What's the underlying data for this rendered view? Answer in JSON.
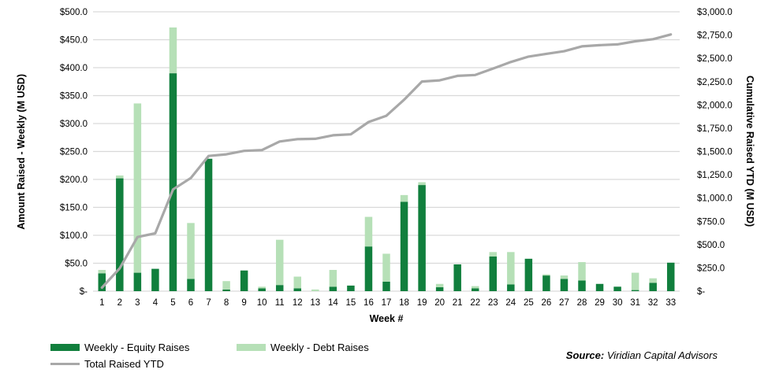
{
  "chart_data": {
    "type": "combo",
    "xlabel": "Week #",
    "categories": [
      "1",
      "2",
      "3",
      "4",
      "5",
      "6",
      "7",
      "8",
      "9",
      "10",
      "11",
      "12",
      "13",
      "14",
      "15",
      "16",
      "17",
      "18",
      "19",
      "20",
      "21",
      "22",
      "23",
      "24",
      "25",
      "26",
      "27",
      "28",
      "29",
      "30",
      "31",
      "32",
      "33"
    ],
    "series": [
      {
        "name": "Weekly - Equity Raises",
        "type": "bar",
        "stack": "weekly",
        "axis": "left",
        "color": "#117f3d",
        "values": [
          32,
          202,
          33,
          40,
          390,
          22,
          237,
          3,
          37,
          5,
          11,
          5,
          0,
          8,
          10,
          80,
          17,
          160,
          190,
          7,
          48,
          5,
          62,
          12,
          58,
          28,
          22,
          19,
          13,
          8,
          2,
          15,
          51
        ]
      },
      {
        "name": "Weekly - Debt Raises",
        "type": "bar",
        "stack": "weekly",
        "axis": "left",
        "color": "#b6e0b7",
        "values": [
          6,
          5,
          303,
          0,
          82,
          100,
          0,
          15,
          0,
          3,
          81,
          21,
          3,
          30,
          0,
          53,
          50,
          12,
          5,
          6,
          0,
          4,
          8,
          58,
          0,
          2,
          6,
          33,
          0,
          0,
          31,
          8,
          0
        ]
      },
      {
        "name": "Total Raised YTD",
        "type": "line",
        "axis": "right",
        "color": "#a8a8a8",
        "values": [
          38,
          245,
          581,
          621,
          1093,
          1215,
          1452,
          1470,
          1507,
          1515,
          1607,
          1633,
          1636,
          1674,
          1684,
          1817,
          1884,
          2056,
          2251,
          2264,
          2312,
          2321,
          2391,
          2461,
          2519,
          2549,
          2577,
          2629,
          2642,
          2650,
          2683,
          2706,
          2757
        ]
      }
    ],
    "left_axis": {
      "title": "Amount Raised - Weekly (M USD)",
      "min": 0,
      "max": 500,
      "step": 50,
      "tick_labels": [
        "$500.0",
        "$450.0",
        "$400.0",
        "$350.0",
        "$300.0",
        "$250.0",
        "$200.0",
        "$150.0",
        "$100.0",
        "$50.0",
        "$-"
      ]
    },
    "right_axis": {
      "title": "Cumulative Raised YTD (M USD)",
      "min": 0,
      "max": 3000,
      "step": 250,
      "tick_labels": [
        "$3,000.0",
        "$2,750.0",
        "$2,500.0",
        "$2,250.0",
        "$2,000.0",
        "$1,750.0",
        "$1,500.0",
        "$1,250.0",
        "$1,000.0",
        "$750.0",
        "$500.0",
        "$250.0",
        "$-"
      ]
    },
    "grid": true,
    "gridline_color": "#d9d9d9",
    "legend_position": "bottom-left"
  },
  "source": {
    "label": "Source:",
    "text": "Viridian Capital Advisors"
  }
}
